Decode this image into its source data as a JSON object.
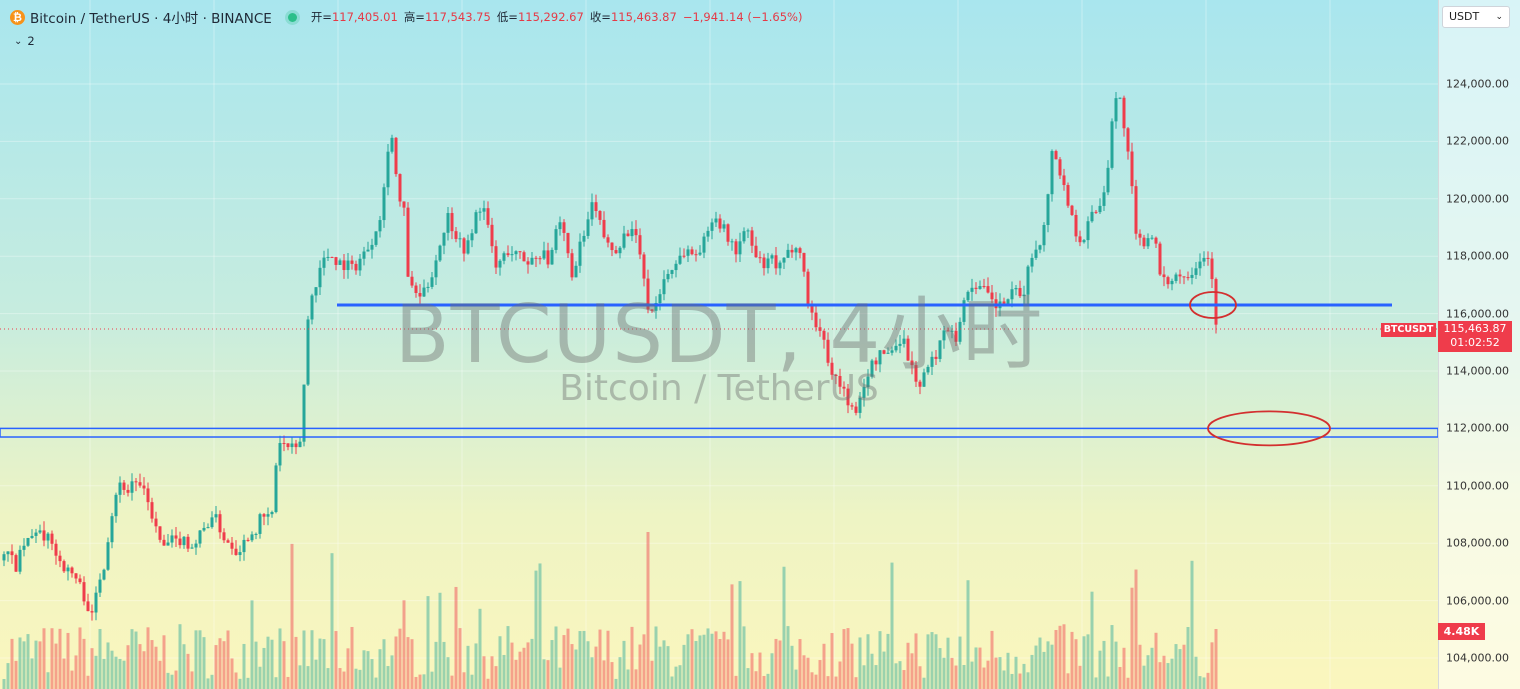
{
  "header": {
    "logo_glyph": "₿",
    "title": "Bitcoin / TetherUS · 4小时 · BINANCE",
    "open_label": "开=",
    "open": "117,405.01",
    "high_label": "高=",
    "high": "117,543.75",
    "low_label": "低=",
    "low": "115,292.67",
    "close_label": "收=",
    "close": "115,463.87",
    "change": "−1,941.14 (−1.65%)",
    "indicator_count": "2"
  },
  "currency_select": {
    "value": "USDT"
  },
  "watermark": {
    "symbol": "BTCUSDT, 4小时",
    "name": "Bitcoin / TetherUS"
  },
  "price_axis": {
    "ticks": [
      "124,000.00",
      "122,000.00",
      "120,000.00",
      "118,000.00",
      "116,000.00",
      "114,000.00",
      "112,000.00",
      "110,000.00",
      "108,000.00",
      "106,000.00",
      "104,000.00"
    ],
    "current_price": "115,463.87",
    "countdown": "01:02:52",
    "symbol_tag": "BTCUSDT",
    "volume_label": "4.48K"
  },
  "colors": {
    "up": "#26a69a",
    "down": "#ef3c4b",
    "line": "#2962ff",
    "annotation": "#d32f2f"
  },
  "chart_data": {
    "type": "candlestick",
    "ylim": [
      103000,
      125500
    ],
    "y_ticks": [
      104000,
      106000,
      108000,
      110000,
      112000,
      114000,
      116000,
      118000,
      120000,
      122000,
      124000
    ],
    "grid": true,
    "last_price": 115463.87,
    "levels": [
      {
        "type": "horizontal-line",
        "price": 116300
      },
      {
        "type": "horizontal-band",
        "from": 111700,
        "to": 112000
      }
    ],
    "annotations": [
      {
        "type": "ellipse",
        "price": 116300
      },
      {
        "type": "ellipse",
        "price": 112000
      }
    ],
    "close_path": [
      [
        0,
        107400
      ],
      [
        8,
        107600
      ],
      [
        16,
        107200
      ],
      [
        24,
        107900
      ],
      [
        32,
        108200
      ],
      [
        38,
        108600
      ],
      [
        44,
        107900
      ],
      [
        50,
        108400
      ],
      [
        56,
        107600
      ],
      [
        62,
        107300
      ],
      [
        68,
        107000
      ],
      [
        74,
        106900
      ],
      [
        80,
        106500
      ],
      [
        86,
        106000
      ],
      [
        92,
        105400
      ],
      [
        98,
        106600
      ],
      [
        104,
        107300
      ],
      [
        110,
        108700
      ],
      [
        116,
        109800
      ],
      [
        122,
        110100
      ],
      [
        128,
        109800
      ],
      [
        134,
        110300
      ],
      [
        140,
        109900
      ],
      [
        146,
        109600
      ],
      [
        152,
        109000
      ],
      [
        158,
        108200
      ],
      [
        164,
        107800
      ],
      [
        170,
        108100
      ],
      [
        176,
        108000
      ],
      [
        182,
        108200
      ],
      [
        188,
        108000
      ],
      [
        194,
        107900
      ],
      [
        200,
        108300
      ],
      [
        206,
        108600
      ],
      [
        212,
        109000
      ],
      [
        218,
        108700
      ],
      [
        224,
        108200
      ],
      [
        230,
        108000
      ],
      [
        236,
        107800
      ],
      [
        242,
        107900
      ],
      [
        248,
        108300
      ],
      [
        254,
        108400
      ],
      [
        260,
        108800
      ],
      [
        266,
        108900
      ],
      [
        272,
        109000
      ],
      [
        278,
        111600
      ],
      [
        284,
        111400
      ],
      [
        290,
        111300
      ],
      [
        296,
        111200
      ],
      [
        302,
        111800
      ],
      [
        306,
        115200
      ],
      [
        310,
        116400
      ],
      [
        316,
        117100
      ],
      [
        322,
        117800
      ],
      [
        330,
        118100
      ],
      [
        338,
        117800
      ],
      [
        346,
        117700
      ],
      [
        354,
        117600
      ],
      [
        362,
        118000
      ],
      [
        370,
        118400
      ],
      [
        376,
        119000
      ],
      [
        382,
        119700
      ],
      [
        386,
        121000
      ],
      [
        390,
        122700
      ],
      [
        394,
        121600
      ],
      [
        398,
        120000
      ],
      [
        404,
        119500
      ],
      [
        408,
        117400
      ],
      [
        412,
        116800
      ],
      [
        418,
        116600
      ],
      [
        424,
        116700
      ],
      [
        430,
        117200
      ],
      [
        436,
        117900
      ],
      [
        442,
        118700
      ],
      [
        448,
        119400
      ],
      [
        454,
        118900
      ],
      [
        460,
        118500
      ],
      [
        466,
        118200
      ],
      [
        472,
        118800
      ],
      [
        478,
        119800
      ],
      [
        484,
        119600
      ],
      [
        490,
        118600
      ],
      [
        496,
        117600
      ],
      [
        502,
        117900
      ],
      [
        508,
        118200
      ],
      [
        514,
        118100
      ],
      [
        520,
        118000
      ],
      [
        526,
        117800
      ],
      [
        532,
        117900
      ],
      [
        538,
        118000
      ],
      [
        544,
        118300
      ],
      [
        550,
        117600
      ],
      [
        556,
        118800
      ],
      [
        562,
        119100
      ],
      [
        568,
        118000
      ],
      [
        574,
        117200
      ],
      [
        580,
        118300
      ],
      [
        586,
        118900
      ],
      [
        592,
        119800
      ],
      [
        598,
        119300
      ],
      [
        604,
        118700
      ],
      [
        610,
        118200
      ],
      [
        616,
        118300
      ],
      [
        622,
        118600
      ],
      [
        628,
        118900
      ],
      [
        634,
        118700
      ],
      [
        640,
        118200
      ],
      [
        646,
        116400
      ],
      [
        652,
        116100
      ],
      [
        658,
        116500
      ],
      [
        664,
        117200
      ],
      [
        670,
        117500
      ],
      [
        676,
        117800
      ],
      [
        682,
        118100
      ],
      [
        688,
        118200
      ],
      [
        694,
        118000
      ],
      [
        700,
        118300
      ],
      [
        706,
        118600
      ],
      [
        712,
        119400
      ],
      [
        718,
        119300
      ],
      [
        724,
        118900
      ],
      [
        730,
        118500
      ],
      [
        736,
        118200
      ],
      [
        742,
        118600
      ],
      [
        748,
        118900
      ],
      [
        754,
        118000
      ],
      [
        760,
        117800
      ],
      [
        766,
        117600
      ],
      [
        772,
        117900
      ],
      [
        778,
        117500
      ],
      [
        784,
        117800
      ],
      [
        790,
        118200
      ],
      [
        796,
        118500
      ],
      [
        802,
        117900
      ],
      [
        808,
        116400
      ],
      [
        814,
        115800
      ],
      [
        820,
        115400
      ],
      [
        826,
        114700
      ],
      [
        832,
        114000
      ],
      [
        838,
        113600
      ],
      [
        844,
        113300
      ],
      [
        850,
        112800
      ],
      [
        856,
        112400
      ],
      [
        860,
        113000
      ],
      [
        866,
        113800
      ],
      [
        872,
        114200
      ],
      [
        878,
        114500
      ],
      [
        884,
        114600
      ],
      [
        890,
        114700
      ],
      [
        896,
        114900
      ],
      [
        902,
        115300
      ],
      [
        908,
        114500
      ],
      [
        914,
        113900
      ],
      [
        920,
        113500
      ],
      [
        926,
        114000
      ],
      [
        932,
        114300
      ],
      [
        938,
        114800
      ],
      [
        944,
        115300
      ],
      [
        950,
        115700
      ],
      [
        956,
        115200
      ],
      [
        962,
        116100
      ],
      [
        968,
        116800
      ],
      [
        974,
        117100
      ],
      [
        980,
        116900
      ],
      [
        986,
        116700
      ],
      [
        992,
        116400
      ],
      [
        998,
        116200
      ],
      [
        1004,
        116400
      ],
      [
        1010,
        116600
      ],
      [
        1016,
        116700
      ],
      [
        1022,
        116500
      ],
      [
        1028,
        117500
      ],
      [
        1034,
        118200
      ],
      [
        1040,
        118600
      ],
      [
        1046,
        119200
      ],
      [
        1052,
        121800
      ],
      [
        1058,
        121200
      ],
      [
        1064,
        120400
      ],
      [
        1070,
        119600
      ],
      [
        1076,
        118900
      ],
      [
        1082,
        118500
      ],
      [
        1088,
        119100
      ],
      [
        1094,
        119600
      ],
      [
        1100,
        119800
      ],
      [
        1106,
        120500
      ],
      [
        1112,
        122800
      ],
      [
        1118,
        123800
      ],
      [
        1124,
        122600
      ],
      [
        1130,
        121000
      ],
      [
        1136,
        118700
      ],
      [
        1142,
        118400
      ],
      [
        1148,
        118700
      ],
      [
        1154,
        118900
      ],
      [
        1160,
        117200
      ],
      [
        1166,
        117000
      ],
      [
        1172,
        117300
      ],
      [
        1178,
        117400
      ],
      [
        1184,
        117300
      ],
      [
        1190,
        117500
      ],
      [
        1196,
        117700
      ],
      [
        1202,
        118100
      ],
      [
        1208,
        117900
      ],
      [
        1212,
        117400
      ],
      [
        1216,
        115460
      ]
    ]
  }
}
